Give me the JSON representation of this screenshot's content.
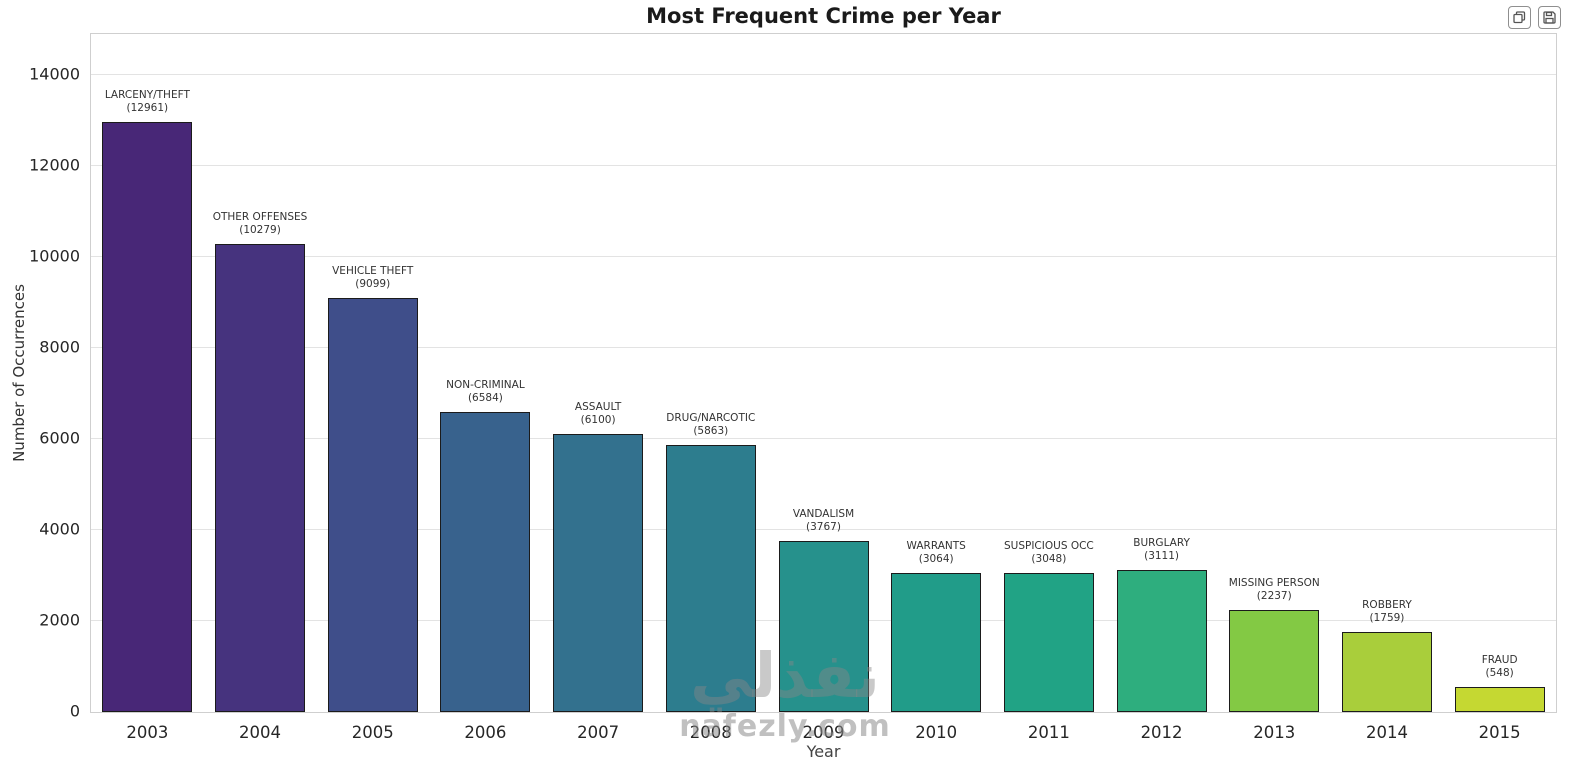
{
  "header": {
    "title": "Most Frequent Crime per Year"
  },
  "toolbar": {
    "buttons": [
      {
        "name": "copy",
        "icon": "copy-icon"
      },
      {
        "name": "save",
        "icon": "save-icon"
      }
    ]
  },
  "watermark": {
    "logo_text": "نفذلي",
    "site_text": "nafezly.com"
  },
  "chart_data": {
    "type": "bar",
    "title": "Most Frequent Crime per Year",
    "xlabel": "Year",
    "ylabel": "Number of Occurrences",
    "categories": [
      "2003",
      "2004",
      "2005",
      "2006",
      "2007",
      "2008",
      "2009",
      "2010",
      "2011",
      "2012",
      "2013",
      "2014",
      "2015"
    ],
    "values": [
      12961,
      10279,
      9099,
      6584,
      6100,
      5863,
      3767,
      3064,
      3048,
      3111,
      2237,
      1759,
      548
    ],
    "bar_labels": [
      "LARCENY/THEFT",
      "OTHER OFFENSES",
      "VEHICLE THEFT",
      "NON-CRIMINAL",
      "ASSAULT",
      "DRUG/NARCOTIC",
      "VANDALISM",
      "WARRANTS",
      "SUSPICIOUS OCC",
      "BURGLARY",
      "MISSING PERSON",
      "ROBBERY",
      "FRAUD"
    ],
    "bar_colors": [
      "#482777",
      "#46337e",
      "#3f4e8a",
      "#38628d",
      "#33718e",
      "#2d7d8e",
      "#26918c",
      "#219c89",
      "#21a385",
      "#2eae7e",
      "#83c944",
      "#a9ce3b",
      "#c5d832"
    ],
    "bar_edge_color": "#1b1b1b",
    "ylim": [
      0,
      14900
    ],
    "yticks": [
      0,
      2000,
      4000,
      6000,
      8000,
      10000,
      12000,
      14000
    ],
    "grid": true,
    "legend": "none"
  }
}
